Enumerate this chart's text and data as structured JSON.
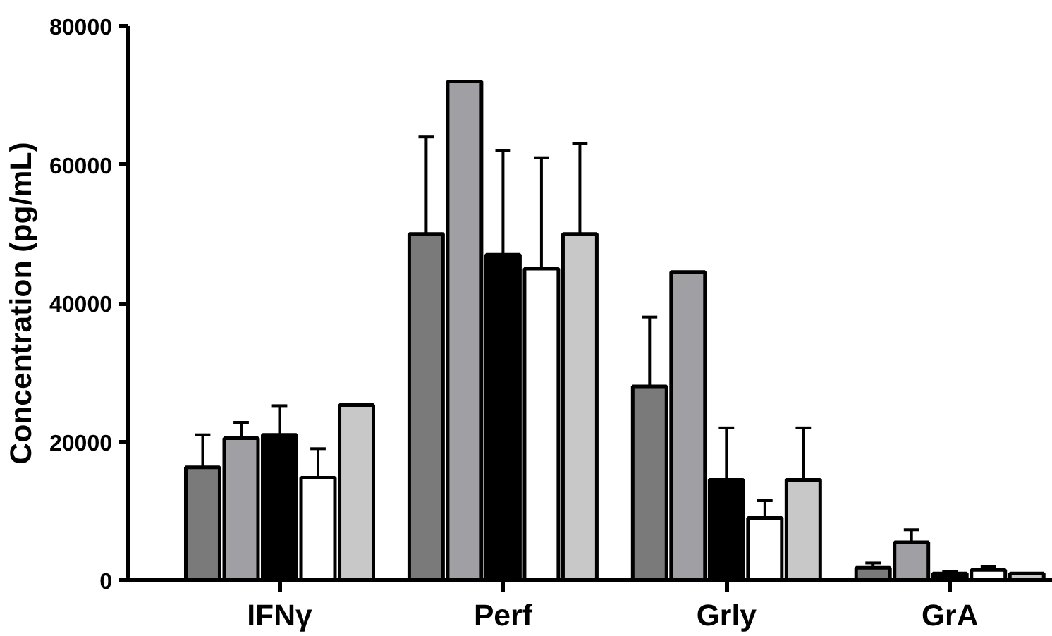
{
  "chart_data": {
    "type": "bar",
    "ylabel": "Concentration (pg/mL)",
    "categories": [
      "IFNγ",
      "Perf",
      "Grly",
      "GrA"
    ],
    "ylim": [
      0,
      80000
    ],
    "yticks": [
      0,
      20000,
      40000,
      60000,
      80000
    ],
    "grid": false,
    "series": [
      {
        "color": "#7a7a7a",
        "values": [
          16300,
          50000,
          28000,
          1800
        ],
        "errors": [
          [
            16300,
            21000
          ],
          [
            50000,
            64000
          ],
          [
            28000,
            38000
          ],
          [
            1800,
            2500
          ]
        ]
      },
      {
        "color": "#a0a0a4",
        "values": [
          20500,
          72000,
          44500,
          5500
        ],
        "errors": [
          [
            20500,
            22800
          ],
          [
            72000,
            72000
          ],
          [
            44500,
            44500
          ],
          [
            5500,
            7300
          ]
        ]
      },
      {
        "color": "#000000",
        "values": [
          21000,
          47000,
          14500,
          1000
        ],
        "errors": [
          [
            21000,
            25200
          ],
          [
            47000,
            62000
          ],
          [
            14500,
            22000
          ],
          [
            1000,
            1300
          ]
        ]
      },
      {
        "color": "#ffffff",
        "values": [
          14800,
          45000,
          9000,
          1500
        ],
        "errors": [
          [
            14800,
            19000
          ],
          [
            45000,
            61000
          ],
          [
            9000,
            11500
          ],
          [
            1500,
            2000
          ]
        ]
      },
      {
        "color": "#c8c8c8",
        "values": [
          25300,
          50000,
          14500,
          1000
        ],
        "errors": [
          [
            25300,
            25300
          ],
          [
            50000,
            63000
          ],
          [
            14500,
            22000
          ],
          [
            1000,
            1000
          ]
        ]
      }
    ]
  }
}
